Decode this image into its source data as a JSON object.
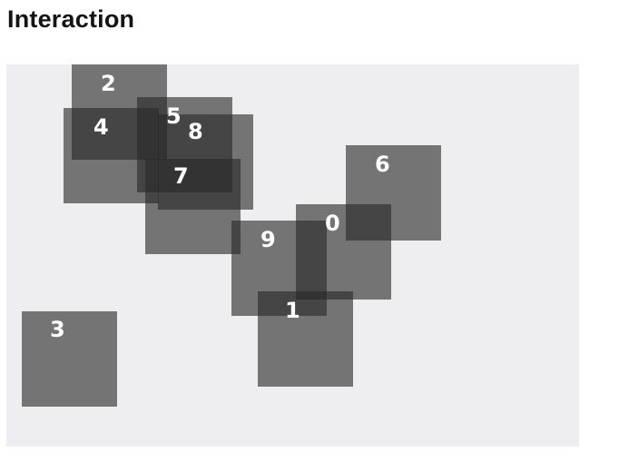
{
  "heading": "Interaction",
  "squares": [
    {
      "label": "2"
    },
    {
      "label": "4"
    },
    {
      "label": "5"
    },
    {
      "label": "8"
    },
    {
      "label": "7"
    },
    {
      "label": "6"
    },
    {
      "label": "9"
    },
    {
      "label": "0"
    },
    {
      "label": "1"
    },
    {
      "label": "3"
    }
  ]
}
